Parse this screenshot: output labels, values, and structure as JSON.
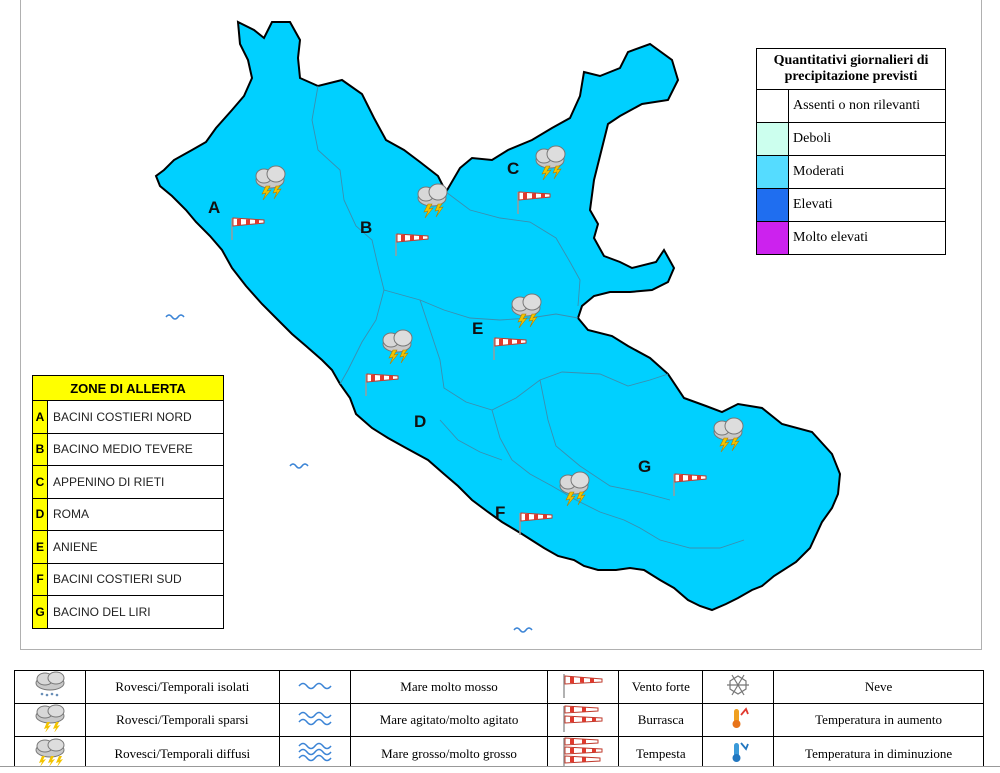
{
  "map": {
    "zone_labels": [
      "A",
      "B",
      "C",
      "D",
      "E",
      "F",
      "G"
    ],
    "region_color": "#00d0ff",
    "border_color": "#000000",
    "inner_line_color": "#3a8fb0"
  },
  "precip_legend": {
    "title": "Quantitativi giornalieri di precipitazione previsti",
    "items": [
      {
        "label": "Assenti o non rilevanti",
        "color": "#ffffff"
      },
      {
        "label": "Deboli",
        "color": "#ccffee"
      },
      {
        "label": "Moderati",
        "color": "#55dcff"
      },
      {
        "label": "Elevati",
        "color": "#1f6ef0"
      },
      {
        "label": "Molto elevati",
        "color": "#cc22ee"
      }
    ]
  },
  "zones_table": {
    "title": "ZONE DI ALLERTA",
    "rows": [
      {
        "code": "A",
        "name": "BACINI COSTIERI NORD"
      },
      {
        "code": "B",
        "name": "BACINO MEDIO TEVERE"
      },
      {
        "code": "C",
        "name": "APPENINO DI RIETI"
      },
      {
        "code": "D",
        "name": "ROMA"
      },
      {
        "code": "E",
        "name": "ANIENE"
      },
      {
        "code": "F",
        "name": "BACINI COSTIERI SUD"
      },
      {
        "code": "G",
        "name": "BACINO DEL LIRI"
      }
    ]
  },
  "bottom_legend": {
    "rows": [
      [
        {
          "icon": "storm-cloud-icon",
          "label": "Rovesci/Temporali isolati"
        },
        {
          "icon": "sea-wave-1-icon",
          "label": "Mare molto mosso"
        },
        {
          "icon": "windsock-1-icon",
          "label": "Vento forte"
        },
        {
          "icon": "snowflake-icon",
          "label": "Neve"
        }
      ],
      [
        {
          "icon": "storm-cloud-icon",
          "label": "Rovesci/Temporali sparsi"
        },
        {
          "icon": "sea-wave-2-icon",
          "label": "Mare agitato/molto agitato"
        },
        {
          "icon": "windsock-2-icon",
          "label": "Burrasca"
        },
        {
          "icon": "thermometer-up-icon",
          "label": "Temperatura in aumento"
        }
      ],
      [
        {
          "icon": "storm-cloud-icon",
          "label": "Rovesci/Temporali diffusi"
        },
        {
          "icon": "sea-wave-3-icon",
          "label": "Mare grosso/molto grosso"
        },
        {
          "icon": "windsock-3-icon",
          "label": "Tempesta"
        },
        {
          "icon": "thermometer-down-icon",
          "label": "Temperatura in diminuzione"
        }
      ]
    ]
  }
}
